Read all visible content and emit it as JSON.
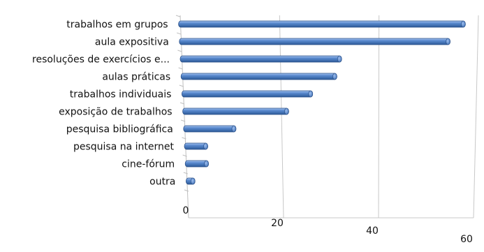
{
  "chart_data": {
    "type": "bar",
    "orientation": "horizontal",
    "style": "3d-cylinder",
    "categories": [
      "trabalhos em grupos",
      "aula expositiva",
      "resoluções de exercícios e...",
      "aulas práticas",
      "trabalhos individuais",
      "exposição de trabalhos",
      "pesquisa bibliográfica",
      "pesquisa na internet",
      "cine-fórum",
      "outra"
    ],
    "values": [
      57,
      54,
      32,
      31,
      26,
      21,
      10,
      4,
      4,
      1
    ],
    "title": "",
    "xlabel": "",
    "ylabel": "",
    "xlim": [
      0,
      60
    ],
    "x_ticks": [
      "0",
      "20",
      "40",
      "60"
    ],
    "grid": true,
    "legend": "none",
    "colors": {
      "bar": "#4a7cc3",
      "bar_dark": "#2f5e9e",
      "bar_light": "#8fb3e6",
      "grid": "#c8c8c8"
    }
  }
}
